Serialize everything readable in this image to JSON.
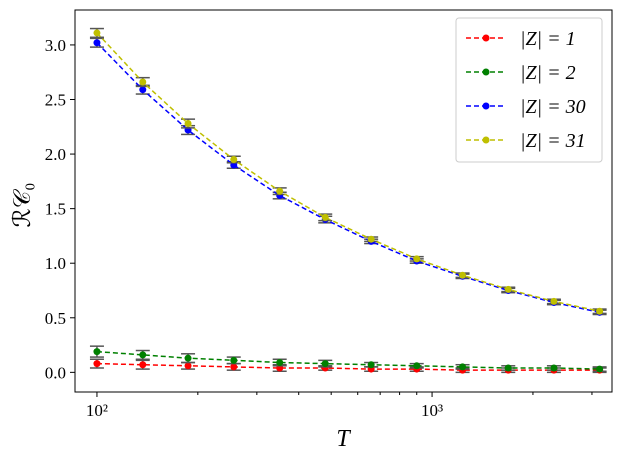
{
  "chart_data": {
    "type": "line",
    "xlabel": "T",
    "ylabel": "ℛ𝒞₀",
    "xscale": "log",
    "x": [
      100,
      137,
      187,
      256,
      351,
      480,
      658,
      900,
      1233,
      1688,
      2310,
      3162
    ],
    "series": [
      {
        "name": "|Z| = 1",
        "color": "#ff0000",
        "values": [
          0.08,
          0.07,
          0.06,
          0.05,
          0.04,
          0.04,
          0.03,
          0.03,
          0.02,
          0.02,
          0.02,
          0.02
        ],
        "errors": [
          0.04,
          0.04,
          0.03,
          0.03,
          0.03,
          0.02,
          0.02,
          0.02,
          0.02,
          0.02,
          0.02,
          0.02
        ]
      },
      {
        "name": "|Z| = 2",
        "color": "#008000",
        "values": [
          0.19,
          0.16,
          0.13,
          0.11,
          0.09,
          0.08,
          0.07,
          0.06,
          0.05,
          0.04,
          0.04,
          0.03
        ],
        "errors": [
          0.05,
          0.04,
          0.04,
          0.03,
          0.03,
          0.03,
          0.02,
          0.02,
          0.02,
          0.02,
          0.02,
          0.02
        ]
      },
      {
        "name": "|Z| = 30",
        "color": "#0000ff",
        "values": [
          3.02,
          2.59,
          2.22,
          1.9,
          1.62,
          1.4,
          1.2,
          1.02,
          0.88,
          0.75,
          0.64,
          0.55
        ],
        "errors": [
          0.04,
          0.04,
          0.04,
          0.03,
          0.03,
          0.03,
          0.02,
          0.02,
          0.02,
          0.02,
          0.02,
          0.02
        ]
      },
      {
        "name": "|Z| = 31",
        "color": "#bfbf00",
        "values": [
          3.11,
          2.66,
          2.28,
          1.95,
          1.66,
          1.42,
          1.22,
          1.04,
          0.89,
          0.76,
          0.65,
          0.56
        ],
        "errors": [
          0.04,
          0.04,
          0.04,
          0.03,
          0.03,
          0.03,
          0.02,
          0.02,
          0.02,
          0.02,
          0.02,
          0.02
        ]
      }
    ],
    "errorbar_color": "#555555",
    "xlim": [
      86,
      3443
    ],
    "ylim": [
      -0.18,
      3.32
    ],
    "xticks": [
      {
        "value": 100,
        "label": "10²"
      },
      {
        "value": 1000,
        "label": "10³"
      }
    ],
    "xminorticks": [
      200,
      300,
      400,
      500,
      600,
      700,
      800,
      900,
      2000,
      3000
    ],
    "yticks": [
      {
        "value": 0,
        "label": "0.0"
      },
      0.5,
      {
        "value": 1,
        "label": "1.0"
      },
      1.5,
      {
        "value": 2,
        "label": "2.0"
      },
      2.5,
      {
        "value": 3,
        "label": "3.0"
      }
    ],
    "legend": "upper-right",
    "grid": false
  }
}
